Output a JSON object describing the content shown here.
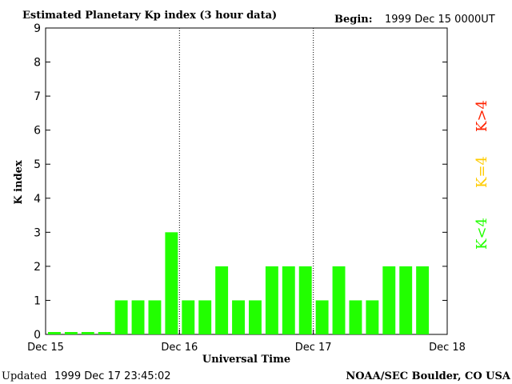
{
  "header": {
    "title": "Estimated Planetary Kp index (3 hour data)",
    "begin_label": "Begin:",
    "begin_value": "1999 Dec 15 0000UT"
  },
  "footer": {
    "updated_label": "Updated",
    "updated_value": "1999 Dec 17 23:45:02",
    "source": "NOAA/SEC Boulder, CO USA"
  },
  "legend": {
    "high": {
      "label": "K>4",
      "color": "#ff2200"
    },
    "mid": {
      "label": "K=4",
      "color": "#ffcc00"
    },
    "low": {
      "label": "K<4",
      "color": "#22ff00"
    }
  },
  "colors": {
    "bar": "#22ff00",
    "axis": "#000000",
    "background": "#ffffff"
  },
  "chart_data": {
    "type": "bar",
    "xlabel": "Universal Time",
    "ylabel": "K index",
    "ylim": [
      0,
      9
    ],
    "yticks": [
      "0",
      "1",
      "2",
      "3",
      "4",
      "5",
      "6",
      "7",
      "8",
      "9"
    ],
    "xticks": [
      "Dec 15",
      "Dec 16",
      "Dec 17",
      "Dec 18"
    ],
    "interval_hours": 3,
    "grid": false,
    "day_dividers": true,
    "values": [
      0,
      0,
      0,
      0,
      1,
      1,
      1,
      3,
      1,
      1,
      2,
      1,
      1,
      2,
      2,
      2,
      1,
      2,
      1,
      1,
      2,
      2,
      2
    ]
  }
}
